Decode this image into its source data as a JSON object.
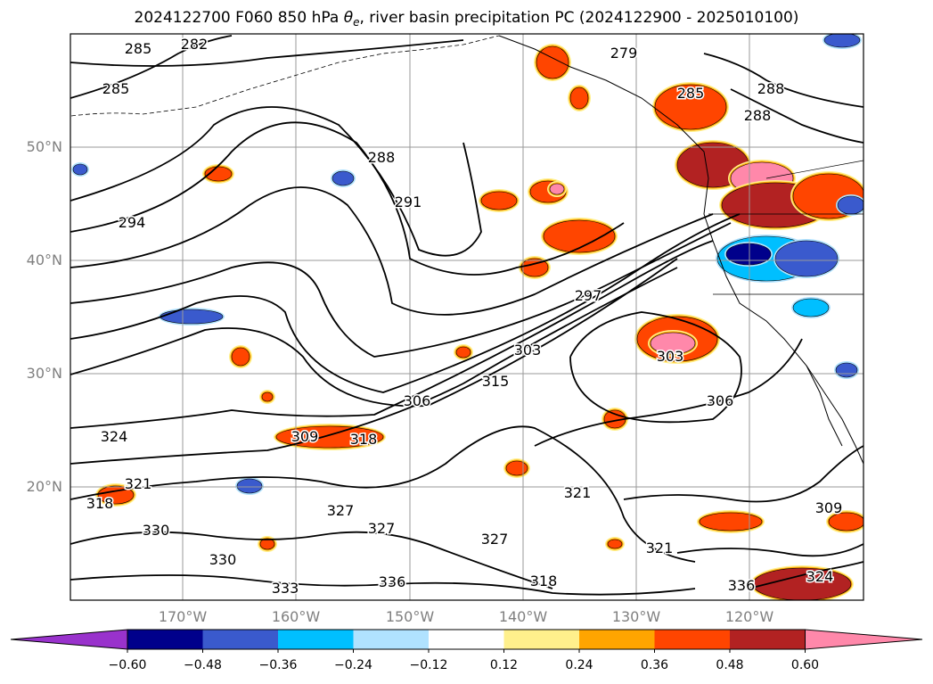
{
  "title": {
    "prefix": "2024122700 F060 850 hPa ",
    "symbol": "θ",
    "subscript": "e",
    "suffix": ", river basin precipitation PC (2024122900 - 2025010100)"
  },
  "map": {
    "lat_ticks": [
      "50°N",
      "40°N",
      "30°N",
      "20°N"
    ],
    "lon_ticks": [
      "170°W",
      "160°W",
      "150°W",
      "140°W",
      "130°W",
      "120°W"
    ],
    "contour_labels": [
      "285",
      "282",
      "285",
      "288",
      "291",
      "294",
      "297",
      "303",
      "306",
      "309",
      "315",
      "318",
      "321",
      "324",
      "327",
      "330",
      "330",
      "333",
      "336",
      "303",
      "306",
      "321",
      "327",
      "318",
      "321",
      "309",
      "324",
      "327",
      "336",
      "318",
      "279",
      "285",
      "288",
      "288"
    ]
  },
  "colorbar": {
    "colors": [
      "#9932cc",
      "#00008b",
      "#3a5acd",
      "#00bfff",
      "#b0e2ff",
      "#ffffff",
      "#fff08c",
      "#ffa500",
      "#ff4500",
      "#b22222",
      "#ff88aa"
    ],
    "labels": [
      "−0.60",
      "−0.48",
      "−0.36",
      "−0.24",
      "−0.12",
      "0.12",
      "0.24",
      "0.36",
      "0.48",
      "0.60"
    ]
  }
}
